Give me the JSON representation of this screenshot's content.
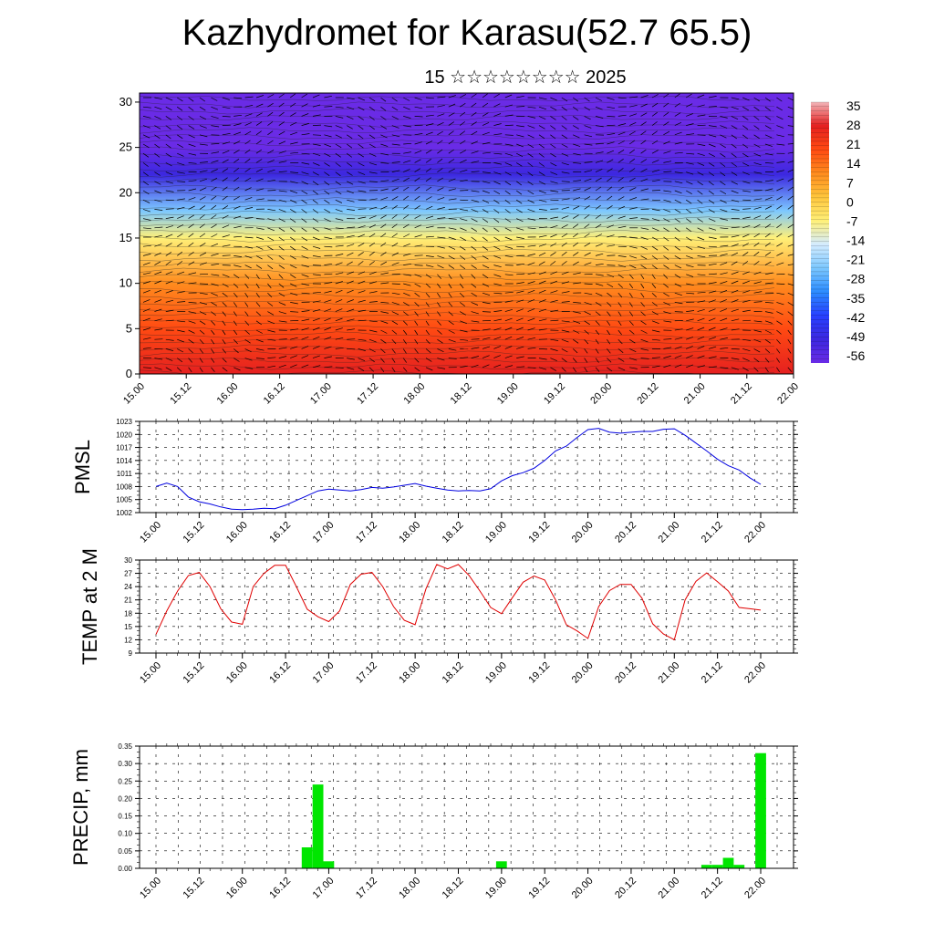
{
  "header": {
    "title": "Kazhydromet for Karasu(52.7 65.5)",
    "subtitle": "15 ☆☆☆☆☆☆☆☆ 2025"
  },
  "time_labels": [
    "15.00",
    "15.12",
    "16.00",
    "16.12",
    "17.00",
    "17.12",
    "18.00",
    "18.12",
    "19.00",
    "19.12",
    "20.00",
    "20.12",
    "21.00",
    "21.12",
    "22.00"
  ],
  "chart_data": [
    {
      "type": "heatmap",
      "title": "",
      "ylim": [
        0,
        31
      ],
      "y_ticks": [
        "0",
        "5",
        "10",
        "15",
        "20",
        "25",
        "30"
      ],
      "colorbar": {
        "labels": [
          "35",
          "28",
          "21",
          "14",
          "7",
          "0",
          "-7",
          "-14",
          "-21",
          "-28",
          "-35",
          "-42",
          "-49",
          "-56"
        ],
        "colors": [
          "#f2b4b8",
          "#e52020",
          "#ff4a12",
          "#ff8c1e",
          "#ffc63c",
          "#fff078",
          "#d4ecff",
          "#7cc8ff",
          "#2c8cff",
          "#2840ff",
          "#3c28e0",
          "#6a2be6"
        ]
      },
      "vertical_temperature_profile": [
        {
          "y": 0,
          "value": 28
        },
        {
          "y": 5,
          "value": 20
        },
        {
          "y": 10,
          "value": 8
        },
        {
          "y": 15,
          "value": -7
        },
        {
          "y": 18,
          "value": -28
        },
        {
          "y": 22,
          "value": -49
        },
        {
          "y": 25,
          "value": -56
        },
        {
          "y": 31,
          "value": -56
        }
      ]
    },
    {
      "type": "line",
      "ylabel": "PMSL",
      "ylim": [
        1002,
        1023
      ],
      "y_ticks": [
        "1002",
        "1005",
        "1008",
        "1011",
        "1014",
        "1017",
        "1020",
        "1023"
      ],
      "line_color": "#0000e0",
      "x": [
        15.0,
        15.125,
        15.25,
        15.375,
        15.5,
        15.625,
        15.75,
        15.875,
        16.0,
        16.125,
        16.25,
        16.375,
        16.5,
        16.625,
        16.75,
        16.875,
        17.0,
        17.125,
        17.25,
        17.375,
        17.5,
        17.625,
        17.75,
        17.875,
        18.0,
        18.125,
        18.25,
        18.375,
        18.5,
        18.625,
        18.75,
        18.875,
        19.0,
        19.125,
        19.25,
        19.375,
        19.5,
        19.625,
        19.75,
        19.875,
        20.0,
        20.125,
        20.25,
        20.375,
        20.5,
        20.625,
        20.75,
        20.875,
        21.0,
        21.125,
        21.25,
        21.375,
        21.5,
        21.625,
        21.75,
        21.875,
        22.0
      ],
      "values": [
        1008,
        1008.8,
        1008,
        1005.6,
        1004.5,
        1004,
        1003.3,
        1002.8,
        1002.7,
        1002.8,
        1003,
        1002.9,
        1003.7,
        1004.8,
        1005.9,
        1007,
        1007.4,
        1007.2,
        1007,
        1007.3,
        1007.8,
        1007.6,
        1007.9,
        1008.3,
        1008.7,
        1008.1,
        1007.6,
        1007.2,
        1007,
        1007.1,
        1007,
        1007.5,
        1009.3,
        1010.5,
        1011.2,
        1012.2,
        1014,
        1016.2,
        1017.3,
        1019.3,
        1021.1,
        1021.4,
        1020.5,
        1020.3,
        1020.5,
        1020.7,
        1020.7,
        1021.2,
        1021.3,
        1019.8,
        1018,
        1016.2,
        1014.3,
        1012.8,
        1011.8,
        1010,
        1008.5
      ]
    },
    {
      "type": "line",
      "ylabel": "TEMP at 2 M",
      "ylim": [
        9,
        30
      ],
      "y_ticks": [
        "9",
        "12",
        "15",
        "18",
        "21",
        "24",
        "27",
        "30"
      ],
      "line_color": "#e00000",
      "x": [
        15.0,
        15.125,
        15.25,
        15.375,
        15.5,
        15.625,
        15.75,
        15.875,
        16.0,
        16.125,
        16.25,
        16.375,
        16.5,
        16.625,
        16.75,
        16.875,
        17.0,
        17.125,
        17.25,
        17.375,
        17.5,
        17.625,
        17.75,
        17.875,
        18.0,
        18.125,
        18.25,
        18.375,
        18.5,
        18.625,
        18.75,
        18.875,
        19.0,
        19.125,
        19.25,
        19.375,
        19.5,
        19.625,
        19.75,
        19.875,
        20.0,
        20.125,
        20.25,
        20.375,
        20.5,
        20.625,
        20.75,
        20.875,
        21.0,
        21.125,
        21.25,
        21.375,
        21.5,
        21.625,
        21.75,
        21.875,
        22.0
      ],
      "values": [
        13.2,
        18.5,
        23,
        26.5,
        27.2,
        24,
        19,
        16,
        15.5,
        24,
        27,
        28.8,
        28.8,
        24,
        18.9,
        17.2,
        16.1,
        18.5,
        24.5,
        26.8,
        27.2,
        24,
        19.5,
        16.4,
        15.4,
        23.5,
        29,
        28,
        29,
        26.5,
        23,
        19.3,
        17.9,
        21.5,
        25,
        26.4,
        25.5,
        21,
        15.4,
        14,
        12.3,
        19.5,
        23.1,
        24.5,
        24.5,
        21.4,
        15.6,
        13.3,
        12,
        21,
        25.2,
        27.1,
        25.1,
        23,
        19.3,
        19,
        18.7
      ]
    },
    {
      "type": "bar",
      "ylabel": "PRECIP, mm",
      "ylim": [
        0,
        0.35
      ],
      "y_ticks": [
        "0.00",
        "0.05",
        "0.10",
        "0.15",
        "0.20",
        "0.25",
        "0.30",
        "0.35"
      ],
      "bar_color": "#00e600",
      "x": [
        16.75,
        16.875,
        17.0,
        19.0,
        21.375,
        21.5,
        21.625,
        21.75,
        22.0
      ],
      "values": [
        0.06,
        0.24,
        0.02,
        0.02,
        0.01,
        0.01,
        0.03,
        0.01,
        0.33
      ]
    }
  ]
}
